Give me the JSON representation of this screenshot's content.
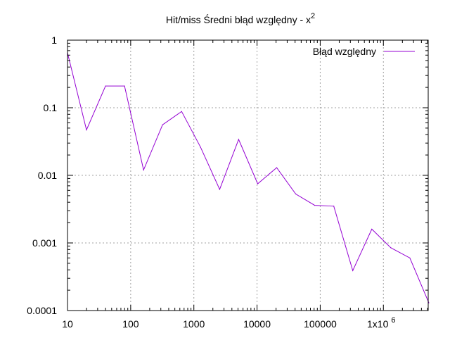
{
  "chart_data": {
    "type": "line",
    "title": "Hit/miss Średni błąd względny - x",
    "title_superscript": "2",
    "xlabel": "",
    "ylabel": "",
    "x_scale": "log",
    "y_scale": "log",
    "xlim": [
      10,
      5120000
    ],
    "ylim": [
      0.0001,
      1
    ],
    "x_ticks": [
      {
        "value": 10,
        "label": "10"
      },
      {
        "value": 100,
        "label": "100"
      },
      {
        "value": 1000,
        "label": "1000"
      },
      {
        "value": 10000,
        "label": "10000"
      },
      {
        "value": 100000,
        "label": "100000"
      },
      {
        "value": 1000000,
        "label": "1x10",
        "sup": "6"
      }
    ],
    "y_ticks": [
      {
        "value": 1,
        "label": "1"
      },
      {
        "value": 0.1,
        "label": "0.1"
      },
      {
        "value": 0.01,
        "label": "0.01"
      },
      {
        "value": 0.001,
        "label": "0.001"
      },
      {
        "value": 0.0001,
        "label": "0.0001"
      }
    ],
    "grid": true,
    "legend_position": "top-right",
    "series": [
      {
        "name": "Błąd względny",
        "color": "#9400d3",
        "x": [
          10,
          20,
          40,
          80,
          160,
          320,
          640,
          1280,
          2560,
          5120,
          10240,
          20480,
          40960,
          81920,
          163840,
          327680,
          655360,
          1310720,
          2621440,
          5242880
        ],
        "y": [
          0.65,
          0.047,
          0.21,
          0.21,
          0.012,
          0.056,
          0.088,
          0.026,
          0.0062,
          0.034,
          0.0075,
          0.013,
          0.0053,
          0.0036,
          0.0035,
          0.00039,
          0.0016,
          0.00085,
          0.0006,
          0.00013
        ]
      }
    ]
  }
}
